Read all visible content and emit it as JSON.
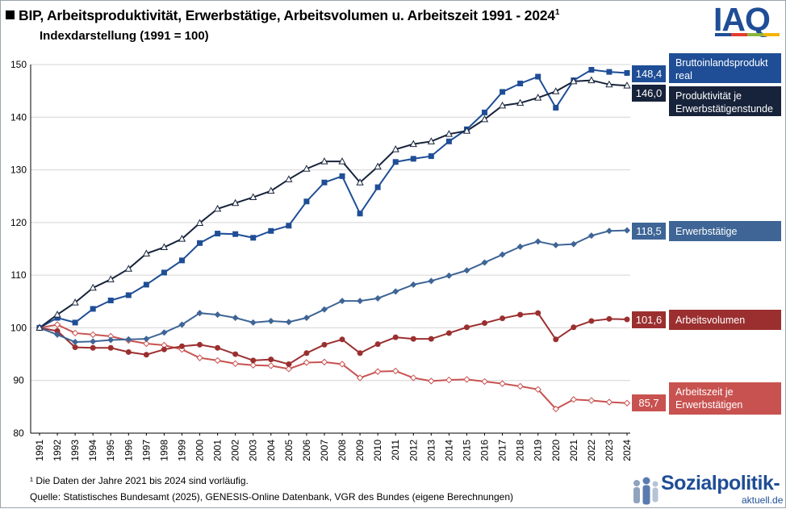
{
  "header": {
    "title": "BIP, Arbeitsproduktivität, Erwerbstätige, Arbeitsvolumen u. Arbeitszeit 1991 - 2024",
    "title_sup": "1",
    "subtitle": "Indexdarstellung (1991 = 100)",
    "logo_text": "IAQ",
    "logo_colors": [
      "#1f4e96",
      "#e63b2e",
      "#8cb63c",
      "#f4b400"
    ]
  },
  "footer": {
    "footnote": "¹ Die Daten der Jahre 2021 bis 2024 sind vorläufig.",
    "source": "Quelle: Statistisches Bundesamt (2025), GENESIS-Online Datenbank, VGR des Bundes (eigene Berechnungen)",
    "brand_main": "Sozialpolitik-",
    "brand_sub": "aktuell.de"
  },
  "chart_data": {
    "type": "line",
    "title": "BIP, Arbeitsproduktivität, Erwerbstätige, Arbeitsvolumen u. Arbeitszeit 1991 - 2024",
    "subtitle": "Indexdarstellung (1991 = 100)",
    "xlabel": "",
    "ylabel": "",
    "ylim": [
      80,
      150
    ],
    "yticks": [
      80,
      90,
      100,
      110,
      120,
      130,
      140,
      150
    ],
    "grid": true,
    "legend": "right (labels at line ends)",
    "x": [
      "1991",
      "1992",
      "1993",
      "1994",
      "1995",
      "1996",
      "1997",
      "1998",
      "1999",
      "2000",
      "2001",
      "2002",
      "2003",
      "2004",
      "2005",
      "2006",
      "2007",
      "2008",
      "2009",
      "2010",
      "2011",
      "2012",
      "2013",
      "2014",
      "2015",
      "2016",
      "2017",
      "2018",
      "2019",
      "2020",
      "2021",
      "2022",
      "2023",
      "2024"
    ],
    "series": [
      {
        "name": "Bruttoinlandsprodukt real",
        "color": "#1f4e96",
        "marker": "square-filled",
        "label_value": "148,4",
        "values": [
          100,
          101.9,
          101.0,
          103.6,
          105.2,
          106.2,
          108.2,
          110.5,
          112.8,
          116.1,
          117.9,
          117.8,
          117.1,
          118.4,
          119.4,
          124.0,
          127.6,
          128.8,
          121.7,
          126.7,
          131.5,
          132.1,
          132.6,
          135.4,
          137.7,
          140.9,
          144.8,
          146.4,
          147.7,
          141.8,
          147.0,
          149.0,
          148.6,
          148.4
        ]
      },
      {
        "name": "Produktivität je Erwerbstätigenstunde",
        "color": "#17233a",
        "marker": "triangle-open",
        "label_value": "146,0",
        "values": [
          100,
          102.5,
          104.8,
          107.6,
          109.2,
          111.2,
          114.1,
          115.3,
          116.9,
          119.9,
          122.6,
          123.7,
          124.8,
          126.0,
          128.2,
          130.2,
          131.6,
          131.6,
          127.6,
          130.6,
          133.9,
          134.9,
          135.4,
          136.8,
          137.4,
          139.6,
          142.2,
          142.7,
          143.7,
          144.9,
          146.8,
          147.0,
          146.2,
          146.0
        ]
      },
      {
        "name": "Erwerbstätige",
        "color": "#3e6596",
        "marker": "diamond-filled",
        "label_value": "118,5",
        "values": [
          100,
          98.7,
          97.3,
          97.4,
          97.7,
          97.8,
          97.9,
          99.1,
          100.6,
          102.8,
          102.5,
          101.9,
          101.0,
          101.3,
          101.1,
          101.9,
          103.5,
          105.1,
          105.1,
          105.6,
          106.9,
          108.2,
          108.9,
          109.9,
          110.9,
          112.4,
          113.9,
          115.4,
          116.4,
          115.7,
          115.9,
          117.5,
          118.4,
          118.5
        ]
      },
      {
        "name": "Arbeitsvolumen",
        "color": "#9b2f2f",
        "marker": "circle-filled",
        "label_value": "101,6",
        "values": [
          100,
          99.4,
          96.3,
          96.2,
          96.2,
          95.4,
          94.9,
          95.9,
          96.5,
          96.8,
          96.2,
          95.0,
          93.8,
          94.0,
          93.1,
          95.2,
          96.8,
          97.8,
          95.2,
          96.9,
          98.2,
          97.9,
          97.9,
          99.0,
          100.1,
          100.9,
          101.8,
          102.5,
          102.8,
          97.8,
          100.1,
          101.3,
          101.7,
          101.6
        ]
      },
      {
        "name": "Arbeitszeit je Erwerbstätigen",
        "color": "#c85250",
        "marker": "diamond-open",
        "label_value": "85,7",
        "values": [
          100,
          100.6,
          99.0,
          98.7,
          98.4,
          97.6,
          97.0,
          96.7,
          95.9,
          94.3,
          93.8,
          93.2,
          92.9,
          92.8,
          92.2,
          93.4,
          93.5,
          93.1,
          90.5,
          91.7,
          91.8,
          90.5,
          89.9,
          90.1,
          90.2,
          89.8,
          89.4,
          88.9,
          88.3,
          84.6,
          86.4,
          86.2,
          85.9,
          85.7
        ]
      }
    ]
  }
}
